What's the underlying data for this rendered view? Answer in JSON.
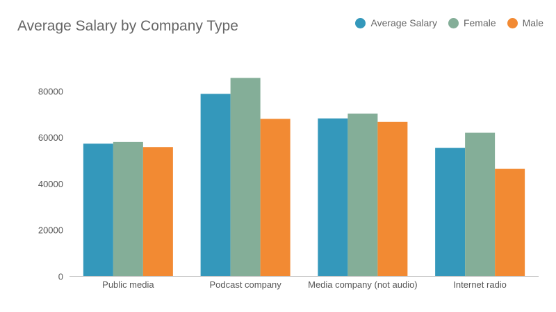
{
  "chart_data": {
    "type": "bar",
    "title": "Average Salary by Company Type",
    "categories": [
      "Public media",
      "Podcast company",
      "Media company (not audio)",
      "Internet radio"
    ],
    "series": [
      {
        "name": "Average Salary",
        "color": "#3498bb",
        "values": [
          57300,
          78800,
          68200,
          55500
        ]
      },
      {
        "name": "Female",
        "color": "#84ae98",
        "values": [
          58000,
          85700,
          70300,
          62000
        ]
      },
      {
        "name": "Male",
        "color": "#f28a33",
        "values": [
          55800,
          68000,
          66700,
          46400
        ]
      }
    ],
    "ylim": [
      0,
      90000
    ],
    "yticks": [
      0,
      20000,
      40000,
      60000,
      80000
    ],
    "legend_position": "top-right",
    "grid": false
  }
}
